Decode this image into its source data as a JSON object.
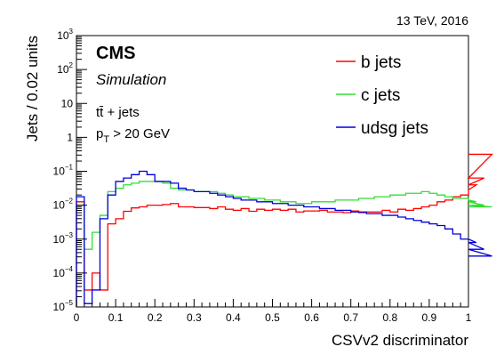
{
  "chart_data": {
    "type": "line",
    "drawstyle": "steps",
    "energy_label": "13 TeV, 2016",
    "title": "CMS",
    "subtitle": "Simulation",
    "sample_label": "tt̄ + jets",
    "cut_label": {
      "p": "p",
      "sub": "T",
      "rest": " > 20 GeV"
    },
    "xlabel": "CSVv2 discriminator",
    "ylabel": "Jets / 0.02 units",
    "xlim": [
      0,
      1
    ],
    "ylim_log10": [
      -5,
      3
    ],
    "yscale": "log",
    "x_ticks": [
      {
        "v": 0,
        "label": "0"
      },
      {
        "v": 0.1,
        "label": "0.1"
      },
      {
        "v": 0.2,
        "label": "0.2"
      },
      {
        "v": 0.3,
        "label": "0.3"
      },
      {
        "v": 0.4,
        "label": "0.4"
      },
      {
        "v": 0.5,
        "label": "0.5"
      },
      {
        "v": 0.6,
        "label": "0.6"
      },
      {
        "v": 0.7,
        "label": "0.7"
      },
      {
        "v": 0.8,
        "label": "0.8"
      },
      {
        "v": 0.9,
        "label": "0.9"
      },
      {
        "v": 1,
        "label": "1"
      }
    ],
    "y_ticks": [
      {
        "p": -5,
        "base": "10",
        "exp": "−5"
      },
      {
        "p": -4,
        "base": "10",
        "exp": "−4"
      },
      {
        "p": -3,
        "base": "10",
        "exp": "−3"
      },
      {
        "p": -2,
        "base": "10",
        "exp": "−2"
      },
      {
        "p": -1,
        "base": "10",
        "exp": "−1"
      },
      {
        "p": 0,
        "base": "1",
        "exp": ""
      },
      {
        "p": 1,
        "base": "10",
        "exp": ""
      },
      {
        "p": 2,
        "base": "10",
        "exp": "2"
      },
      {
        "p": 3,
        "base": "10",
        "exp": "3"
      }
    ],
    "bin_width": 0.02,
    "series": [
      {
        "name": "b jets",
        "color": "#ff0000",
        "log10_values": [
          -1.9,
          -4.5,
          -4.0,
          -4.5,
          -2.55,
          -2.4,
          -2.18,
          -2.08,
          -2.05,
          -2.0,
          -2.0,
          -1.98,
          -1.95,
          -2.05,
          -2.05,
          -2.07,
          -2.07,
          -2.1,
          -2.05,
          -2.12,
          -2.15,
          -2.1,
          -2.18,
          -2.12,
          -2.15,
          -2.12,
          -2.15,
          -2.12,
          -2.2,
          -2.17,
          -2.17,
          -2.15,
          -2.2,
          -2.2,
          -2.22,
          -2.17,
          -2.22,
          -2.2,
          -2.2,
          -2.15,
          -2.2,
          -2.12,
          -2.15,
          -2.1,
          -2.05,
          -2.0,
          -1.9,
          -1.85,
          -1.75,
          -1.7,
          -1.55,
          -1.4,
          -1.2,
          -0.5
        ]
      },
      {
        "name": "c jets",
        "color": "#33dd33",
        "log10_values": [
          -2.0,
          -3.3,
          -2.8,
          -2.3,
          -1.6,
          -1.5,
          -1.4,
          -1.35,
          -1.3,
          -1.3,
          -1.3,
          -1.35,
          -1.5,
          -1.55,
          -1.55,
          -1.6,
          -1.6,
          -1.6,
          -1.65,
          -1.7,
          -1.75,
          -1.75,
          -1.8,
          -1.8,
          -1.85,
          -1.85,
          -1.9,
          -1.9,
          -1.95,
          -1.95,
          -1.9,
          -1.9,
          -1.9,
          -1.85,
          -1.85,
          -1.85,
          -1.8,
          -1.8,
          -1.75,
          -1.75,
          -1.7,
          -1.7,
          -1.65,
          -1.65,
          -1.6,
          -1.65,
          -1.7,
          -1.75,
          -1.8,
          -1.8,
          -1.85,
          -1.9,
          -2.0,
          -2.05
        ]
      },
      {
        "name": "udsg jets",
        "color": "#0000dd",
        "log10_values": [
          -1.75,
          -4.9,
          -4.5,
          -2.4,
          -1.7,
          -1.3,
          -1.2,
          -1.1,
          -1.0,
          -1.1,
          -1.3,
          -1.3,
          -1.35,
          -1.5,
          -1.55,
          -1.6,
          -1.6,
          -1.65,
          -1.7,
          -1.75,
          -1.8,
          -1.85,
          -1.85,
          -1.9,
          -1.9,
          -1.95,
          -1.95,
          -2.0,
          -2.0,
          -2.05,
          -2.05,
          -2.1,
          -2.1,
          -2.15,
          -2.15,
          -2.2,
          -2.2,
          -2.25,
          -2.25,
          -2.3,
          -2.3,
          -2.35,
          -2.4,
          -2.45,
          -2.5,
          -2.55,
          -2.6,
          -2.7,
          -2.85,
          -3.0,
          -3.0,
          -3.1,
          -3.3,
          -3.5
        ]
      }
    ]
  }
}
